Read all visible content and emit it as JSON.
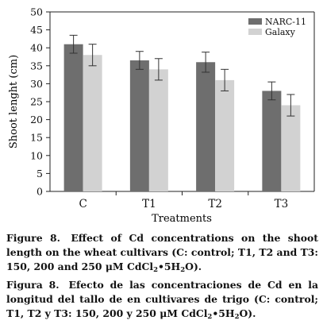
{
  "chart_data": {
    "type": "bar",
    "ylabel": "Shoot lenght (cm)",
    "xlabel": "Treatments",
    "categories": [
      "C",
      "T1",
      "T2",
      "T3"
    ],
    "ylim": [
      0,
      50
    ],
    "yticks": [
      0,
      5,
      10,
      15,
      20,
      25,
      30,
      35,
      40,
      45,
      50
    ],
    "legend_position": "top-right",
    "grid": false,
    "series": [
      {
        "name": "NARC-11",
        "color": "#6e6e6e",
        "values": [
          41,
          36.5,
          36,
          28
        ],
        "errors": [
          2.5,
          2.5,
          2.8,
          2.5
        ]
      },
      {
        "name": "Galaxy",
        "color": "#d2d2d2",
        "values": [
          38,
          34,
          31,
          24
        ],
        "errors": [
          3,
          3,
          3,
          3
        ]
      }
    ]
  },
  "caption_en": {
    "label": "Figure 8.",
    "text_before_sub": "Effect of Cd concentrations on the shoot length on the wheat cultivars (C: control; T1, T2 and T3: 150, 200 and 250 μM CdCl",
    "sub1": "2",
    "mid": "•5H",
    "sub2": "2",
    "end": "O)."
  },
  "caption_es": {
    "label": "Figura 8.",
    "text_before_sub": "Efecto de las concentraciones de Cd en la longitud del tallo de en cultivares de trigo (C: control; T1, T2 y T3: 150, 200 y 250 μM CdCl",
    "sub1": "2",
    "mid": "•5H",
    "sub2": "2",
    "end": "O)."
  }
}
